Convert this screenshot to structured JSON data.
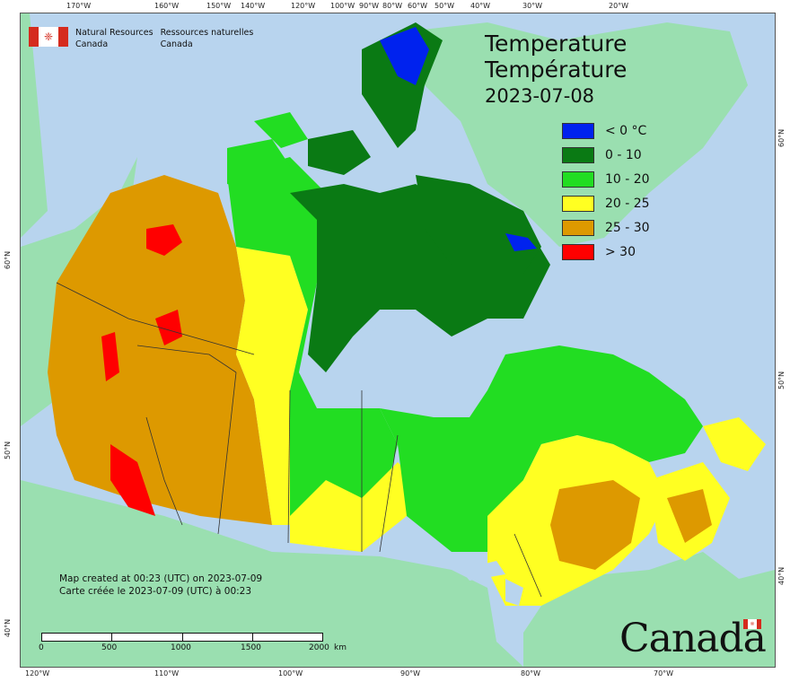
{
  "agency": {
    "name_en_line1": "Natural Resources",
    "name_en_line2": "Canada",
    "name_fr_line1": "Ressources naturelles",
    "name_fr_line2": "Canada"
  },
  "title": {
    "en": "Temperature",
    "fr": "Température",
    "date": "2023-07-08"
  },
  "legend": [
    {
      "label": "< 0 °C",
      "color": "#0022ee"
    },
    {
      "label": "0 - 10",
      "color": "#0a7a14"
    },
    {
      "label": "10 - 20",
      "color": "#22dd22"
    },
    {
      "label": "20 - 25",
      "color": "#ffff22"
    },
    {
      "label": "25 - 30",
      "color": "#dd9900"
    },
    {
      "label": "> 30",
      "color": "#ff0000"
    }
  ],
  "note": {
    "en": "Map created at 00:23 (UTC) on 2023-07-09",
    "fr": "Carte créée le 2023-07-09 (UTC) à 00:23"
  },
  "scale_bar": {
    "labels": [
      "0",
      "500",
      "1000",
      "1500",
      "2000"
    ],
    "unit": "km"
  },
  "top_ticks": [
    "170°W",
    "160°W",
    "150°W",
    "140°W",
    "120°W",
    "100°W",
    "90°W",
    "80°W",
    "60°W",
    "50°W",
    "40°W",
    "30°W",
    "20°W"
  ],
  "bottom_ticks": [
    "120°W",
    "110°W",
    "100°W",
    "90°W",
    "80°W",
    "70°W"
  ],
  "left_ticks": [
    "60°N",
    "50°N",
    "40°N"
  ],
  "right_ticks": [
    "60°N",
    "50°N",
    "40°N"
  ],
  "wordmark": "Canada",
  "colors": {
    "water": "#b8d4ee",
    "neighbour_land": "#9adfb0"
  }
}
